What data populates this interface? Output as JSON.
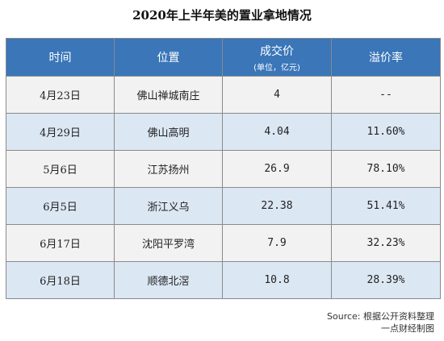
{
  "title": "2020年上半年美的置业拿地情况",
  "table": {
    "headers": {
      "time": "时间",
      "location": "位置",
      "price": "成交价",
      "price_unit": "(单位，亿元)",
      "premium": "溢价率"
    },
    "rows": [
      {
        "time": "4月23日",
        "location": "佛山禅城南庄",
        "price": "4",
        "premium": "--"
      },
      {
        "time": "4月29日",
        "location": "佛山高明",
        "price": "4.04",
        "premium": "11.60%"
      },
      {
        "time": "5月6日",
        "location": "江苏扬州",
        "price": "26.9",
        "premium": "78.10%"
      },
      {
        "time": "6月5日",
        "location": "浙江义乌",
        "price": "22.38",
        "premium": "51.41%"
      },
      {
        "time": "6月17日",
        "location": "沈阳平罗湾",
        "price": "7.9",
        "premium": "32.23%"
      },
      {
        "time": "6月18日",
        "location": "顺德北滘",
        "price": "10.8",
        "premium": "28.39%"
      }
    ]
  },
  "source_line1": "Source: 根据公开资料整理",
  "source_line2": "一点财经制图"
}
